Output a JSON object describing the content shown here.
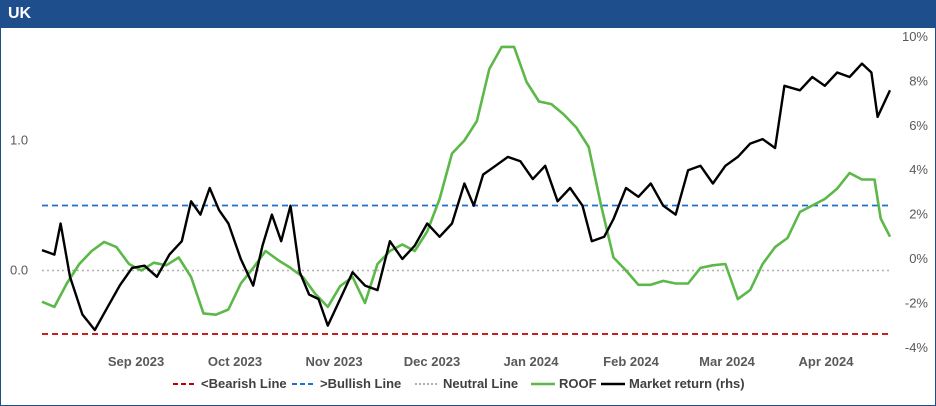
{
  "header": {
    "title": "UK"
  },
  "colors": {
    "header_bg": "#1f4e8c",
    "bearish": "#c00000",
    "bullish": "#1f6fd1",
    "neutral": "#b0b0b0",
    "roof": "#5cb848",
    "market": "#000000"
  },
  "chart_data": {
    "type": "line",
    "x_tick_labels": [
      "Sep 2023",
      "Oct 2023",
      "Nov 2023",
      "Dec 2023",
      "Jan 2024",
      "Feb 2024",
      "Mar 2024",
      "Apr 2024"
    ],
    "x_range": [
      "2023-08-01",
      "2024-04-30"
    ],
    "left_axis": {
      "ticks": [
        0.0,
        1.0
      ],
      "tick_labels": [
        "0.0",
        "1.0"
      ],
      "range": [
        -0.5,
        1.75
      ]
    },
    "right_axis": {
      "ticks": [
        -4,
        -2,
        0,
        2,
        4,
        6,
        8,
        10
      ],
      "tick_labels": [
        "-4%",
        "-2%",
        "0%",
        "2%",
        "4%",
        "6%",
        "8%",
        "10%"
      ],
      "range": [
        -4,
        10
      ]
    },
    "reference_lines": [
      {
        "name": "<Bearish Line",
        "value": -0.5,
        "axis": "left",
        "style": "dashed"
      },
      {
        "name": ">Bullish Line",
        "value": 0.5,
        "axis": "left",
        "style": "dashed"
      },
      {
        "name": "Neutral Line",
        "value": 0.0,
        "axis": "left",
        "style": "dotted"
      }
    ],
    "series": [
      {
        "name": "ROOF",
        "axis": "left",
        "points": [
          [
            "2023-08-01",
            -0.24
          ],
          [
            "2023-08-05",
            -0.28
          ],
          [
            "2023-08-09",
            -0.1
          ],
          [
            "2023-08-13",
            0.05
          ],
          [
            "2023-08-17",
            0.15
          ],
          [
            "2023-08-21",
            0.22
          ],
          [
            "2023-08-25",
            0.18
          ],
          [
            "2023-08-29",
            0.05
          ],
          [
            "2023-09-02",
            0.0
          ],
          [
            "2023-09-06",
            0.06
          ],
          [
            "2023-09-10",
            0.04
          ],
          [
            "2023-09-14",
            0.1
          ],
          [
            "2023-09-18",
            -0.05
          ],
          [
            "2023-09-22",
            -0.33
          ],
          [
            "2023-09-26",
            -0.34
          ],
          [
            "2023-09-30",
            -0.3
          ],
          [
            "2023-10-04",
            -0.1
          ],
          [
            "2023-10-08",
            0.02
          ],
          [
            "2023-10-12",
            0.15
          ],
          [
            "2023-10-16",
            0.08
          ],
          [
            "2023-10-20",
            0.02
          ],
          [
            "2023-10-24",
            -0.05
          ],
          [
            "2023-10-28",
            -0.18
          ],
          [
            "2023-11-01",
            -0.28
          ],
          [
            "2023-11-05",
            -0.12
          ],
          [
            "2023-11-09",
            -0.05
          ],
          [
            "2023-11-13",
            -0.25
          ],
          [
            "2023-11-17",
            0.05
          ],
          [
            "2023-11-21",
            0.15
          ],
          [
            "2023-11-25",
            0.2
          ],
          [
            "2023-11-29",
            0.15
          ],
          [
            "2023-12-03",
            0.3
          ],
          [
            "2023-12-07",
            0.55
          ],
          [
            "2023-12-11",
            0.9
          ],
          [
            "2023-12-15",
            1.0
          ],
          [
            "2023-12-19",
            1.15
          ],
          [
            "2023-12-23",
            1.55
          ],
          [
            "2023-12-27",
            1.72
          ],
          [
            "2023-12-31",
            1.72
          ],
          [
            "2024-01-04",
            1.45
          ],
          [
            "2024-01-08",
            1.3
          ],
          [
            "2024-01-12",
            1.28
          ],
          [
            "2024-01-16",
            1.2
          ],
          [
            "2024-01-20",
            1.1
          ],
          [
            "2024-01-24",
            0.95
          ],
          [
            "2024-01-28",
            0.5
          ],
          [
            "2024-02-01",
            0.1
          ],
          [
            "2024-02-05",
            0.0
          ],
          [
            "2024-02-09",
            -0.11
          ],
          [
            "2024-02-13",
            -0.11
          ],
          [
            "2024-02-17",
            -0.08
          ],
          [
            "2024-02-21",
            -0.1
          ],
          [
            "2024-02-25",
            -0.1
          ],
          [
            "2024-02-29",
            0.02
          ],
          [
            "2024-03-04",
            0.04
          ],
          [
            "2024-03-08",
            0.05
          ],
          [
            "2024-03-12",
            -0.22
          ],
          [
            "2024-03-16",
            -0.15
          ],
          [
            "2024-03-20",
            0.05
          ],
          [
            "2024-03-24",
            0.18
          ],
          [
            "2024-03-28",
            0.25
          ],
          [
            "2024-04-01",
            0.45
          ],
          [
            "2024-04-05",
            0.5
          ],
          [
            "2024-04-09",
            0.55
          ],
          [
            "2024-04-13",
            0.63
          ],
          [
            "2024-04-17",
            0.75
          ],
          [
            "2024-04-21",
            0.7
          ],
          [
            "2024-04-25",
            0.7
          ],
          [
            "2024-04-27",
            0.4
          ],
          [
            "2024-04-30",
            0.26
          ]
        ]
      },
      {
        "name": "Market return (rhs)",
        "axis": "right",
        "points": [
          [
            "2023-08-01",
            0.4
          ],
          [
            "2023-08-05",
            0.2
          ],
          [
            "2023-08-07",
            1.6
          ],
          [
            "2023-08-10",
            -0.8
          ],
          [
            "2023-08-14",
            -2.5
          ],
          [
            "2023-08-18",
            -3.2
          ],
          [
            "2023-08-22",
            -2.2
          ],
          [
            "2023-08-26",
            -1.2
          ],
          [
            "2023-08-30",
            -0.4
          ],
          [
            "2023-09-03",
            -0.3
          ],
          [
            "2023-09-07",
            -0.8
          ],
          [
            "2023-09-11",
            0.2
          ],
          [
            "2023-09-15",
            0.8
          ],
          [
            "2023-09-18",
            2.6
          ],
          [
            "2023-09-21",
            2.0
          ],
          [
            "2023-09-24",
            3.2
          ],
          [
            "2023-09-27",
            2.2
          ],
          [
            "2023-09-30",
            1.6
          ],
          [
            "2023-10-04",
            0.0
          ],
          [
            "2023-10-08",
            -1.2
          ],
          [
            "2023-10-11",
            0.6
          ],
          [
            "2023-10-14",
            2.0
          ],
          [
            "2023-10-17",
            0.8
          ],
          [
            "2023-10-20",
            2.4
          ],
          [
            "2023-10-23",
            -0.6
          ],
          [
            "2023-10-26",
            -1.6
          ],
          [
            "2023-10-29",
            -1.8
          ],
          [
            "2023-11-01",
            -3.0
          ],
          [
            "2023-11-05",
            -1.8
          ],
          [
            "2023-11-09",
            -0.6
          ],
          [
            "2023-11-13",
            -1.2
          ],
          [
            "2023-11-17",
            -1.4
          ],
          [
            "2023-11-21",
            0.8
          ],
          [
            "2023-11-25",
            0.0
          ],
          [
            "2023-11-29",
            0.6
          ],
          [
            "2023-12-03",
            1.6
          ],
          [
            "2023-12-07",
            1.0
          ],
          [
            "2023-12-11",
            1.6
          ],
          [
            "2023-12-15",
            3.4
          ],
          [
            "2023-12-18",
            2.4
          ],
          [
            "2023-12-21",
            3.8
          ],
          [
            "2023-12-25",
            4.2
          ],
          [
            "2023-12-29",
            4.6
          ],
          [
            "2024-01-02",
            4.4
          ],
          [
            "2024-01-06",
            3.6
          ],
          [
            "2024-01-10",
            4.2
          ],
          [
            "2024-01-14",
            2.6
          ],
          [
            "2024-01-18",
            3.2
          ],
          [
            "2024-01-22",
            2.4
          ],
          [
            "2024-01-25",
            0.8
          ],
          [
            "2024-01-29",
            1.0
          ],
          [
            "2024-02-01",
            1.8
          ],
          [
            "2024-02-05",
            3.2
          ],
          [
            "2024-02-09",
            2.8
          ],
          [
            "2024-02-13",
            3.4
          ],
          [
            "2024-02-17",
            2.4
          ],
          [
            "2024-02-21",
            2.0
          ],
          [
            "2024-02-25",
            4.0
          ],
          [
            "2024-02-29",
            4.2
          ],
          [
            "2024-03-04",
            3.4
          ],
          [
            "2024-03-08",
            4.2
          ],
          [
            "2024-03-12",
            4.6
          ],
          [
            "2024-03-16",
            5.2
          ],
          [
            "2024-03-20",
            5.4
          ],
          [
            "2024-03-24",
            5.0
          ],
          [
            "2024-03-27",
            7.8
          ],
          [
            "2024-04-01",
            7.6
          ],
          [
            "2024-04-05",
            8.2
          ],
          [
            "2024-04-09",
            7.8
          ],
          [
            "2024-04-13",
            8.4
          ],
          [
            "2024-04-17",
            8.2
          ],
          [
            "2024-04-21",
            8.8
          ],
          [
            "2024-04-24",
            8.4
          ],
          [
            "2024-04-26",
            6.4
          ],
          [
            "2024-04-30",
            7.6
          ]
        ]
      }
    ],
    "legend": {
      "position": "bottom",
      "entries": [
        "<Bearish Line",
        ">Bullish Line",
        "Neutral Line",
        "ROOF",
        "Market return (rhs)"
      ]
    },
    "grid": false
  }
}
